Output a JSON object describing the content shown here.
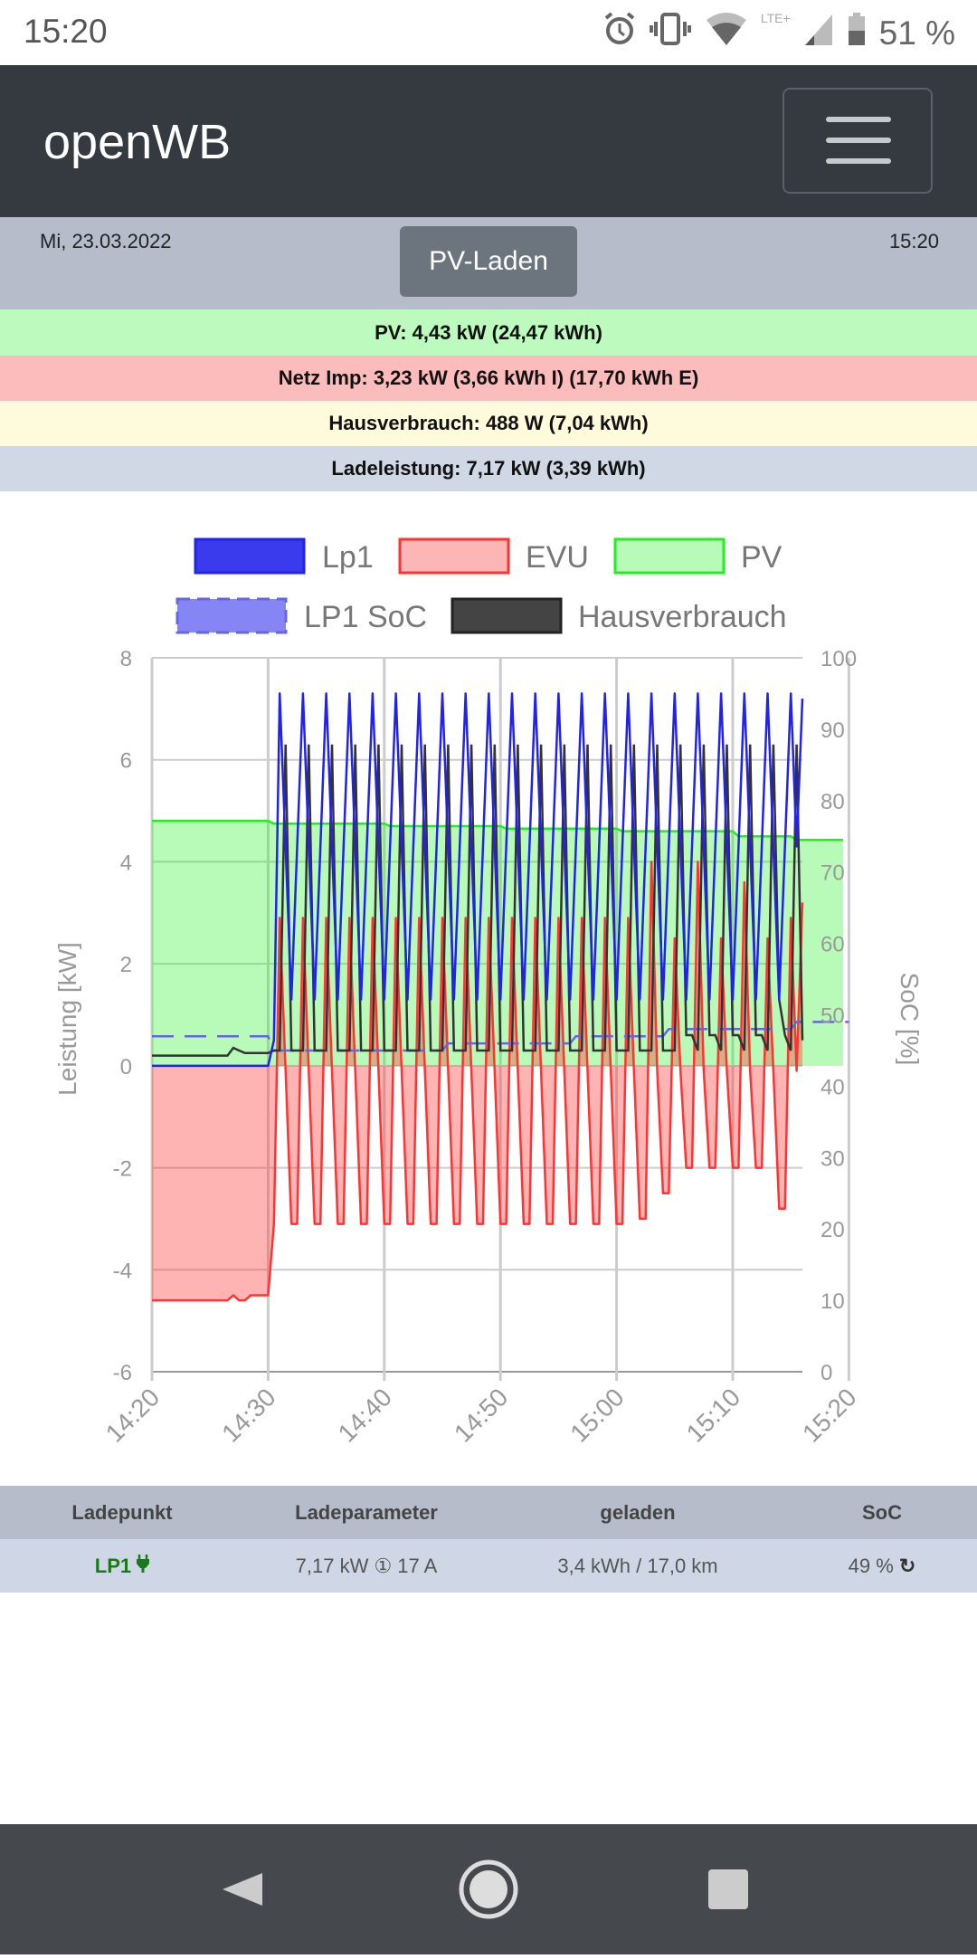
{
  "status_bar": {
    "time": "15:20",
    "network": "LTE+",
    "battery": "51 %"
  },
  "navbar": {
    "brand": "openWB"
  },
  "info": {
    "date": "Mi, 23.03.2022",
    "mode_button": "PV-Laden",
    "time": "15:20"
  },
  "bands": {
    "pv": "PV: 4,43 kW (24,47 kWh)",
    "netz": "Netz Imp: 3,23 kW (3,66 kWh I) (17,70 kWh E)",
    "haus": "Hausverbrauch: 488 W (7,04 kWh)",
    "lade": "Ladeleistung: 7,17 kW (3,39 kWh)"
  },
  "colors": {
    "lp1": "#2222ee",
    "evu": "#ff3333",
    "pv": "#22ee22",
    "soc": "#6666dd",
    "haus": "#333333"
  },
  "chart_data": {
    "type": "line",
    "legend": [
      "Lp1",
      "EVU",
      "PV",
      "LP1 SoC",
      "Hausverbrauch"
    ],
    "legend_position": "top",
    "ylabel": "Leistung [kW]",
    "y2label": "SoC [%]",
    "ylim": [
      -6,
      8
    ],
    "yticks": [
      8,
      6,
      4,
      2,
      0,
      -2,
      -4,
      -6
    ],
    "y2lim": [
      0,
      100
    ],
    "y2ticks": [
      100,
      90,
      80,
      70,
      60,
      50,
      40,
      30,
      20,
      10,
      0
    ],
    "xticks": [
      "14:20",
      "14:30",
      "14:40",
      "14:50",
      "15:00",
      "15:10",
      "15:20"
    ],
    "x_start_minutes": 0,
    "x_step_minutes": 0.5,
    "series": [
      {
        "name": "Lp1",
        "values": [
          0,
          0,
          0,
          0,
          0,
          0,
          0,
          0,
          0,
          0,
          0,
          0,
          0,
          0,
          0,
          0,
          0,
          0,
          0,
          0,
          0,
          0.5,
          7.3,
          4.3,
          1.3,
          4.3,
          7.3,
          4.3,
          1.3,
          4.3,
          7.3,
          4.3,
          1.3,
          4.3,
          7.3,
          4.3,
          1.3,
          4.3,
          7.3,
          4.3,
          1.3,
          4.3,
          7.3,
          4.3,
          1.3,
          4.3,
          7.3,
          4.3,
          1.3,
          4.3,
          7.3,
          4.3,
          1.3,
          4.3,
          7.3,
          4.3,
          1.3,
          4.3,
          7.3,
          4.3,
          1.3,
          4.3,
          7.3,
          4.3,
          1.3,
          4.3,
          7.3,
          4.3,
          1.3,
          4.3,
          7.3,
          4.3,
          1.3,
          4.3,
          7.3,
          4.3,
          1.3,
          4.3,
          7.3,
          4.3,
          1.3,
          4.3,
          7.3,
          4.3,
          1.3,
          4.3,
          7.3,
          4.3,
          1.3,
          4.3,
          7.3,
          4.3,
          1.3,
          4.3,
          7.3,
          4.3,
          1.3,
          4.3,
          7.3,
          4.3,
          1.3,
          4.3,
          7.3,
          4.3,
          1.3,
          4.3,
          7.3,
          4.3,
          1.3,
          4.3,
          7.3,
          4.3,
          7.2
        ]
      },
      {
        "name": "EVU",
        "values": [
          -4.6,
          -4.6,
          -4.6,
          -4.6,
          -4.6,
          -4.6,
          -4.6,
          -4.6,
          -4.6,
          -4.6,
          -4.6,
          -4.6,
          -4.6,
          -4.6,
          -4.5,
          -4.6,
          -4.6,
          -4.5,
          -4.5,
          -4.5,
          -4.5,
          -3.1,
          2.9,
          -0.1,
          -3.1,
          -3.1,
          2.9,
          -0.1,
          -3.1,
          -3.1,
          2.9,
          -0.1,
          -3.1,
          -3.1,
          2.9,
          -0.1,
          -3.1,
          -3.1,
          2.9,
          -0.1,
          -3.1,
          -3.1,
          2.9,
          -0.1,
          -3.1,
          -3.1,
          2.9,
          -0.1,
          -3.1,
          -3.1,
          2.9,
          -0.1,
          -3.1,
          -3.1,
          2.9,
          -0.1,
          -3.1,
          -3.1,
          2.9,
          -0.1,
          -3.1,
          -3.1,
          2.9,
          -0.1,
          -3.1,
          -3.1,
          2.9,
          -0.1,
          -3.1,
          -3.1,
          2.9,
          -0.1,
          -3.1,
          -3.1,
          2.9,
          -0.1,
          -3.1,
          -3.1,
          2.9,
          -0.1,
          -3.1,
          -3.1,
          2.9,
          -0.1,
          -3.0,
          -3.0,
          4.0,
          -0.1,
          -2.5,
          -2.5,
          2.5,
          -0.1,
          -2.0,
          -2.0,
          4.0,
          -0.1,
          -2.0,
          -2.0,
          2.5,
          -0.1,
          -2.0,
          -2.0,
          3.6,
          -0.1,
          -2.0,
          -2.0,
          2.5,
          -0.1,
          -2.8,
          -2.8,
          2.9,
          -0.1,
          3.2
        ]
      },
      {
        "name": "PV",
        "values": [
          4.8,
          4.8,
          4.8,
          4.8,
          4.8,
          4.8,
          4.8,
          4.8,
          4.8,
          4.8,
          4.8,
          4.8,
          4.8,
          4.8,
          4.8,
          4.8,
          4.8,
          4.8,
          4.8,
          4.8,
          4.8,
          4.75,
          4.75,
          4.75,
          4.75,
          4.75,
          4.75,
          4.75,
          4.75,
          4.75,
          4.75,
          4.75,
          4.75,
          4.75,
          4.75,
          4.75,
          4.75,
          4.75,
          4.75,
          4.75,
          4.75,
          4.7,
          4.7,
          4.7,
          4.7,
          4.7,
          4.7,
          4.7,
          4.7,
          4.7,
          4.7,
          4.7,
          4.7,
          4.7,
          4.7,
          4.7,
          4.7,
          4.7,
          4.7,
          4.7,
          4.7,
          4.65,
          4.65,
          4.65,
          4.65,
          4.65,
          4.65,
          4.65,
          4.65,
          4.65,
          4.65,
          4.65,
          4.65,
          4.65,
          4.65,
          4.65,
          4.65,
          4.65,
          4.65,
          4.65,
          4.65,
          4.6,
          4.6,
          4.6,
          4.6,
          4.6,
          4.6,
          4.6,
          4.6,
          4.6,
          4.6,
          4.6,
          4.6,
          4.6,
          4.6,
          4.6,
          4.6,
          4.6,
          4.6,
          4.6,
          4.6,
          4.5,
          4.5,
          4.5,
          4.5,
          4.5,
          4.5,
          4.5,
          4.5,
          4.5,
          4.5,
          4.43,
          4.43,
          4.43,
          4.43,
          4.43,
          4.43,
          4.43,
          4.43,
          4.43
        ]
      },
      {
        "name": "LP1 SoC",
        "axis": "right",
        "values": [
          47,
          47,
          47,
          47,
          47,
          47,
          47,
          47,
          47,
          47,
          47,
          47,
          47,
          47,
          47,
          47,
          47,
          47,
          47,
          47,
          47,
          45,
          45,
          45,
          45,
          45,
          45,
          45,
          45,
          45,
          45,
          45,
          45,
          45,
          45,
          45,
          45,
          45,
          45,
          45,
          45,
          45,
          45,
          45,
          45,
          45,
          45,
          45,
          45,
          45,
          45,
          46,
          46,
          46,
          46,
          46,
          46,
          46,
          46,
          46,
          46,
          46,
          46,
          46,
          46,
          46,
          46,
          46,
          46,
          46,
          46,
          46,
          46,
          47,
          47,
          47,
          47,
          47,
          47,
          47,
          47,
          47,
          47,
          47,
          47,
          47,
          47,
          47,
          47,
          48,
          48,
          48,
          48,
          48,
          48,
          48,
          48,
          48,
          48,
          48,
          48,
          48,
          48,
          48,
          48,
          48,
          48,
          48,
          48,
          48,
          48,
          49,
          49,
          49,
          49,
          49,
          49,
          49,
          49,
          49,
          49
        ]
      },
      {
        "name": "Hausverbrauch",
        "values": [
          0.2,
          0.2,
          0.2,
          0.2,
          0.2,
          0.2,
          0.2,
          0.2,
          0.2,
          0.2,
          0.2,
          0.2,
          0.2,
          0.2,
          0.35,
          0.3,
          0.25,
          0.25,
          0.25,
          0.25,
          0.25,
          0.3,
          0.3,
          6.3,
          0.3,
          0.3,
          0.3,
          6.3,
          0.3,
          0.3,
          0.3,
          6.3,
          0.3,
          0.3,
          0.3,
          6.3,
          0.3,
          0.3,
          0.3,
          6.3,
          0.3,
          0.3,
          0.3,
          6.3,
          0.3,
          0.3,
          0.3,
          6.3,
          0.3,
          0.3,
          0.3,
          6.3,
          0.3,
          0.3,
          0.3,
          6.3,
          0.3,
          0.3,
          0.3,
          6.3,
          0.3,
          0.3,
          0.3,
          6.3,
          0.3,
          0.3,
          0.3,
          6.3,
          0.3,
          0.3,
          0.3,
          6.3,
          0.3,
          0.3,
          0.3,
          6.3,
          0.3,
          0.3,
          0.3,
          6.3,
          0.3,
          0.3,
          0.3,
          6.3,
          0.3,
          0.3,
          0.3,
          6.3,
          0.3,
          0.3,
          0.3,
          6.3,
          0.6,
          0.6,
          0.3,
          6.3,
          0.6,
          0.6,
          0.3,
          6.3,
          0.6,
          0.6,
          0.3,
          6.3,
          0.6,
          0.6,
          0.3,
          6.3,
          1.3,
          0.6,
          0.3,
          6.3,
          0.5
        ]
      }
    ]
  },
  "table": {
    "headers": [
      "Ladepunkt",
      "Ladeparameter",
      "geladen",
      "SoC"
    ],
    "rows": [
      {
        "ladepunkt": "LP1",
        "parameter": "7,17 kW ① 17 A",
        "geladen": "3,4 kWh / 17,0 km",
        "soc": "49 %"
      }
    ]
  }
}
